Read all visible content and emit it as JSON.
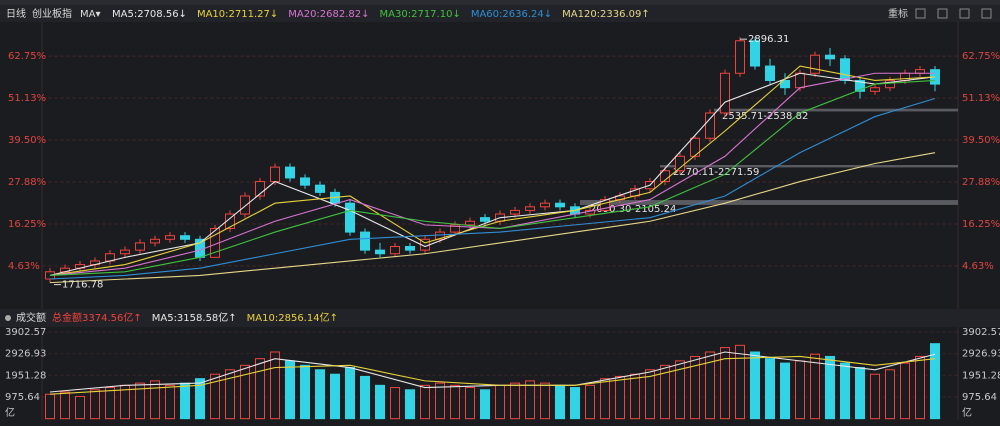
{
  "header": {
    "period": "日线",
    "index": "创业板指",
    "indicator": "MA▾",
    "reset": "重标"
  },
  "chart_data": [
    {
      "type": "candlestick",
      "ylim": [
        -6.2,
        72.2
      ],
      "yticks": [
        {
          "value": 4.63,
          "label": "4.63%"
        },
        {
          "value": 16.25,
          "label": "16.25%"
        },
        {
          "value": 27.88,
          "label": "27.88%"
        },
        {
          "value": 39.5,
          "label": "39.50%"
        },
        {
          "value": 51.13,
          "label": "51.13%"
        },
        {
          "value": 62.75,
          "label": "62.75%"
        }
      ],
      "grid": true,
      "colors": {
        "up": "#f0433d",
        "down": "#33d3e6"
      },
      "candles": [
        [
          1,
          4,
          0,
          3
        ],
        [
          3,
          5,
          2,
          4
        ],
        [
          4,
          6,
          3,
          5
        ],
        [
          5,
          7,
          4,
          6
        ],
        [
          6,
          9,
          5,
          8
        ],
        [
          8,
          10,
          7,
          9
        ],
        [
          9,
          12,
          8,
          11
        ],
        [
          11,
          13,
          10,
          12
        ],
        [
          12,
          14,
          11,
          13
        ],
        [
          13,
          14,
          11,
          12
        ],
        [
          12,
          13,
          6,
          7
        ],
        [
          7,
          16,
          7,
          15
        ],
        [
          15,
          20,
          14,
          19
        ],
        [
          19,
          25,
          18,
          24
        ],
        [
          24,
          29,
          23,
          28
        ],
        [
          28,
          33,
          27,
          32
        ],
        [
          32,
          33,
          28,
          29
        ],
        [
          29,
          30,
          26,
          27
        ],
        [
          27,
          28,
          24,
          25
        ],
        [
          25,
          26,
          21,
          22
        ],
        [
          22,
          23,
          13,
          14
        ],
        [
          14,
          15,
          8,
          9
        ],
        [
          9,
          11,
          7,
          8
        ],
        [
          8,
          11,
          7,
          10
        ],
        [
          10,
          11,
          8,
          9
        ],
        [
          9,
          13,
          8,
          12
        ],
        [
          12,
          15,
          11,
          14
        ],
        [
          14,
          17,
          13,
          16
        ],
        [
          16,
          18,
          15,
          17
        ],
        [
          18,
          19,
          16,
          17
        ],
        [
          17,
          20,
          16,
          19
        ],
        [
          19,
          21,
          18,
          20
        ],
        [
          20,
          22,
          19,
          21
        ],
        [
          21,
          23,
          20,
          22
        ],
        [
          22,
          23,
          20,
          21
        ],
        [
          21,
          22,
          18,
          19
        ],
        [
          19,
          21,
          18,
          20
        ],
        [
          20,
          24,
          20,
          23
        ],
        [
          23,
          25,
          22,
          24
        ],
        [
          24,
          27,
          23,
          26
        ],
        [
          26,
          29,
          25,
          28
        ],
        [
          28,
          32,
          27,
          31
        ],
        [
          31,
          36,
          30,
          35
        ],
        [
          35,
          41,
          34,
          40
        ],
        [
          40,
          48,
          39,
          47
        ],
        [
          47,
          59,
          46,
          58
        ],
        [
          58,
          68,
          57,
          67
        ],
        [
          67,
          68,
          59,
          60
        ],
        [
          60,
          62,
          55,
          56
        ],
        [
          56,
          58,
          52,
          54
        ],
        [
          54,
          59,
          53,
          58
        ],
        [
          58,
          64,
          57,
          63
        ],
        [
          63,
          65,
          60,
          62
        ],
        [
          62,
          63,
          55,
          56
        ],
        [
          56,
          57,
          51,
          53
        ],
        [
          53,
          55,
          52,
          54
        ],
        [
          54,
          57,
          53,
          56
        ],
        [
          56,
          59,
          55,
          58
        ],
        [
          58,
          60,
          57,
          59
        ],
        [
          59,
          60,
          53,
          55
        ]
      ],
      "series": [
        {
          "name": "MA5:2708.56↓",
          "color": "#e8e8e8",
          "x": [
            0,
            5,
            10,
            15,
            20,
            25,
            30,
            35,
            40,
            45,
            50,
            55,
            59
          ],
          "values": [
            2,
            7,
            11,
            28,
            20,
            10,
            18,
            20,
            27,
            50,
            58,
            55,
            57
          ]
        },
        {
          "name": "MA10:2711.27↓",
          "color": "#e8d23a",
          "x": [
            0,
            5,
            10,
            15,
            20,
            25,
            30,
            35,
            40,
            45,
            50,
            55,
            59
          ],
          "values": [
            2,
            5,
            11,
            22,
            24,
            11,
            17,
            20,
            25,
            42,
            60,
            56,
            57
          ]
        },
        {
          "name": "MA20:2682.82↓",
          "color": "#d774d0",
          "x": [
            0,
            5,
            10,
            15,
            20,
            25,
            30,
            35,
            40,
            45,
            50,
            55,
            59
          ],
          "values": [
            2,
            4,
            9,
            17,
            23,
            16,
            15,
            19,
            23,
            35,
            54,
            58,
            58
          ]
        },
        {
          "name": "MA30:2717.10↓",
          "color": "#3fc23f",
          "x": [
            0,
            5,
            10,
            15,
            20,
            25,
            30,
            35,
            40,
            45,
            50,
            55,
            59
          ],
          "values": [
            2,
            3,
            7,
            14,
            20,
            17,
            15,
            18,
            21,
            30,
            47,
            55,
            56
          ]
        },
        {
          "name": "MA60:2636.24↓",
          "color": "#2f8fd6",
          "x": [
            0,
            5,
            10,
            15,
            20,
            25,
            30,
            35,
            40,
            45,
            50,
            55,
            59
          ],
          "values": [
            1,
            2,
            4,
            8,
            12,
            13,
            14,
            16,
            18,
            24,
            36,
            46,
            51
          ]
        },
        {
          "name": "MA120:2336.09↑",
          "color": "#e6d888",
          "x": [
            0,
            5,
            10,
            15,
            20,
            25,
            30,
            35,
            40,
            45,
            50,
            55,
            59
          ],
          "values": [
            0,
            1,
            2,
            4,
            6,
            8,
            11,
            14,
            17,
            22,
            28,
            33,
            36
          ]
        }
      ],
      "annotations": [
        "2896.31",
        "1716.78"
      ],
      "ranges": [
        {
          "label": "2535.71-2538.82",
          "low": 47.7,
          "high": 47.9
        },
        {
          "label": "2270.11-2271.59",
          "low": 32.2,
          "high": 32.3
        },
        {
          "label": "2090.30-2105.24",
          "low": 21.8,
          "high": 22.6
        }
      ]
    },
    {
      "type": "bar",
      "title": "成交额",
      "total": "总金额3374.56亿↑",
      "unit": "亿",
      "ylim": [
        -60,
        4530
      ],
      "yticks": [
        975.64,
        1951.28,
        2926.93,
        3902.57
      ],
      "values": [
        1100,
        1200,
        1000,
        1300,
        1400,
        1500,
        1600,
        1700,
        1500,
        1600,
        1800,
        2000,
        2200,
        2400,
        2700,
        3000,
        2600,
        2400,
        2200,
        2000,
        2300,
        1900,
        1500,
        1400,
        1300,
        1500,
        1600,
        1500,
        1400,
        1300,
        1500,
        1600,
        1700,
        1600,
        1500,
        1400,
        1500,
        1800,
        1900,
        2000,
        2200,
        2400,
        2600,
        2800,
        3000,
        3200,
        3300,
        3000,
        2700,
        2500,
        2600,
        2900,
        2800,
        2500,
        2300,
        2000,
        2200,
        2500,
        2800,
        3374.56
      ],
      "series": [
        {
          "name": "MA5:3158.58亿↑",
          "color": "#e8e8e8",
          "x": [
            0,
            5,
            10,
            15,
            20,
            25,
            30,
            35,
            40,
            45,
            50,
            55,
            59
          ],
          "values": [
            1200,
            1500,
            1600,
            2700,
            2300,
            1400,
            1500,
            1500,
            2100,
            3000,
            2600,
            2200,
            2900
          ]
        },
        {
          "name": "MA10:2856.14亿↑",
          "color": "#e8d23a",
          "x": [
            0,
            5,
            10,
            15,
            20,
            25,
            30,
            35,
            40,
            45,
            50,
            55,
            59
          ],
          "values": [
            1100,
            1300,
            1500,
            2300,
            2400,
            1700,
            1500,
            1500,
            1900,
            2700,
            2800,
            2400,
            2700
          ]
        }
      ]
    }
  ]
}
